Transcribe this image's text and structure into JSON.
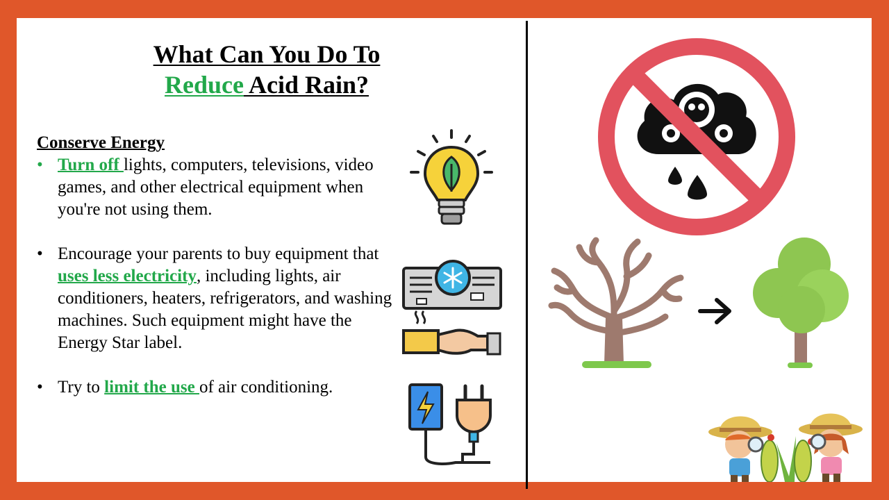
{
  "title": {
    "line1": "What Can You Do To",
    "line2_highlight": "Reduce",
    "line2_rest": " Acid Rain?"
  },
  "section": {
    "heading": "Conserve Energy",
    "bullets": [
      {
        "highlight": "Turn off ",
        "rest": "lights, computers, televisions, video games, and other electrical equipment when you're not using them."
      },
      {
        "pre": "Encourage your parents to buy equipment that ",
        "highlight": "uses less electricity",
        "rest": ", including lights, air conditioners, heaters, refrigerators, and washing machines. Such equipment might have the Energy Star label."
      },
      {
        "pre": "Try to ",
        "highlight": "limit the use ",
        "rest": "of air conditioning."
      }
    ]
  },
  "colors": {
    "accent": "#22a84a",
    "frame": "#e0572a",
    "prohibit": "#e2525e"
  },
  "icons": [
    "lightbulb-leaf-icon",
    "air-conditioner-icon",
    "hand-plug-icon",
    "power-plug-icon",
    "no-pollution-cloud-icon",
    "dead-tree-icon",
    "arrow-right-icon",
    "healthy-tree-icon",
    "kids-explorers-illustration"
  ]
}
